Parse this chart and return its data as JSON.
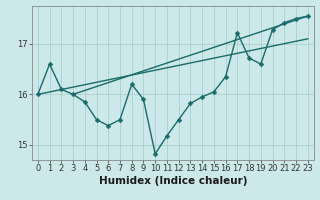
{
  "xlabel": "Humidex (Indice chaleur)",
  "background_color": "#cce8e8",
  "grid_color": "#aacfcf",
  "line_color": "#1a6b6b",
  "xlim": [
    -0.5,
    23.5
  ],
  "ylim": [
    14.7,
    17.75
  ],
  "yticks": [
    15,
    16,
    17
  ],
  "xticks": [
    0,
    1,
    2,
    3,
    4,
    5,
    6,
    7,
    8,
    9,
    10,
    11,
    12,
    13,
    14,
    15,
    16,
    17,
    18,
    19,
    20,
    21,
    22,
    23
  ],
  "line1_x": [
    0,
    1,
    2,
    3,
    4,
    5,
    6,
    7,
    8,
    9,
    10,
    11,
    12,
    13,
    14,
    15,
    16,
    17,
    18,
    19,
    20,
    21,
    22,
    23
  ],
  "line1_y": [
    16.0,
    16.6,
    16.1,
    16.0,
    15.85,
    15.5,
    15.38,
    15.5,
    16.2,
    15.9,
    14.82,
    15.18,
    15.5,
    15.82,
    15.95,
    16.05,
    16.35,
    17.22,
    16.72,
    16.6,
    17.28,
    17.42,
    17.5,
    17.55
  ],
  "line2_x": [
    0,
    23
  ],
  "line2_y": [
    16.0,
    17.1
  ],
  "line3_x": [
    3,
    23
  ],
  "line3_y": [
    16.0,
    17.55
  ],
  "marker_size": 2.5,
  "line_width": 1.0,
  "fontsize_ticks": 6,
  "fontsize_xlabel": 7.5
}
